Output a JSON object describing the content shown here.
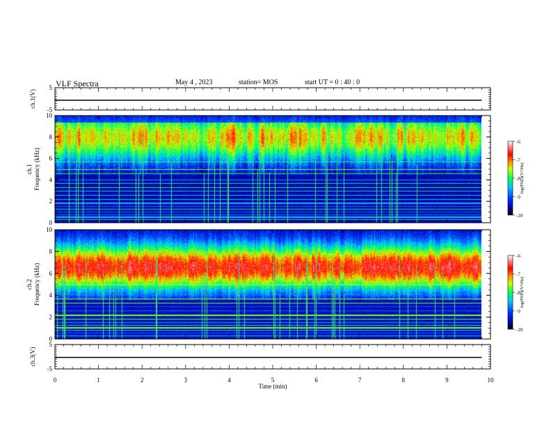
{
  "header": {
    "title": "VLF Spectra",
    "date": "May 4 , 2023",
    "station": "station= MOS",
    "start_ut": "start UT = 0 : 40 : 0"
  },
  "chart_data": [
    {
      "type": "line",
      "panel": "ch1-waveform",
      "ylabel": "ch.1(V)",
      "ylim": [
        -5,
        5
      ],
      "y_ticks": [
        "5",
        "-5"
      ],
      "series": [
        {
          "x": [
            0,
            9.8
          ],
          "y": [
            0,
            0
          ]
        }
      ]
    },
    {
      "type": "heatmap",
      "panel": "ch1-spectrogram",
      "ylabel": "ch.1\nFrequency (kHz)",
      "ylim": [
        0,
        10
      ],
      "y_ticks": [
        "0",
        "2",
        "4",
        "6",
        "8",
        "10"
      ],
      "x_range": [
        0,
        9.8
      ],
      "colorbar": {
        "label": "log(PSD)(V²/Hz)",
        "range": [
          -10,
          -6
        ],
        "ticks": [
          "-6",
          "-7",
          "-8",
          "-9",
          "-10"
        ]
      }
    },
    {
      "type": "heatmap",
      "panel": "ch2-spectrogram",
      "ylabel": "ch.2\nFrequency (kHz)",
      "ylim": [
        0,
        10
      ],
      "y_ticks": [
        "0",
        "2",
        "4",
        "6",
        "8",
        "10"
      ],
      "x_range": [
        0,
        9.8
      ],
      "colorbar": {
        "label": "log(PSD)(V²/Hz)",
        "range": [
          -10,
          -6
        ],
        "ticks": [
          "-6",
          "-7",
          "-8",
          "-9",
          "-10"
        ]
      }
    },
    {
      "type": "line",
      "panel": "ch3-waveform",
      "ylabel": "ch.3(V)",
      "ylim": [
        -5,
        5
      ],
      "y_ticks": [
        "5",
        "-5"
      ],
      "series": [
        {
          "x": [
            0,
            9.8
          ],
          "y": [
            0,
            0
          ]
        }
      ]
    }
  ],
  "x_axis": {
    "label": "Time (min)",
    "range": [
      0,
      10
    ],
    "ticks": [
      "0",
      "1",
      "2",
      "3",
      "4",
      "5",
      "6",
      "7",
      "8",
      "9",
      "10"
    ]
  }
}
